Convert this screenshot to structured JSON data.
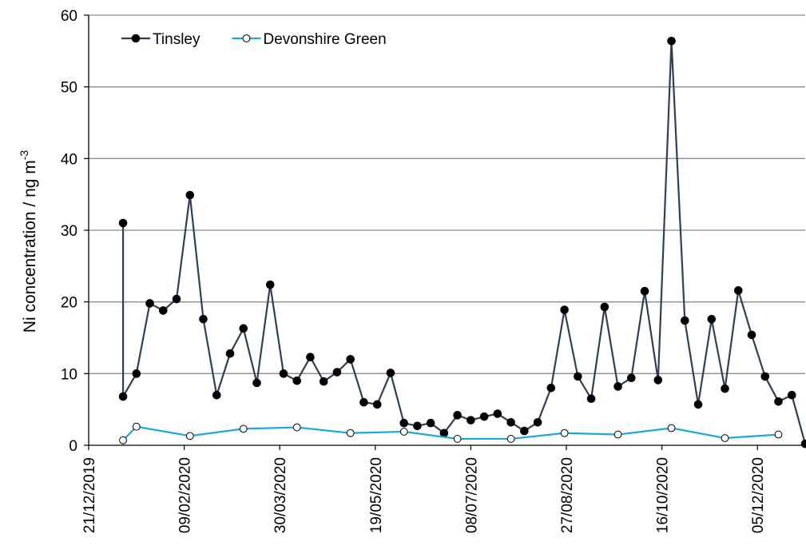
{
  "chart_data": {
    "type": "line",
    "title": "",
    "xlabel": "",
    "ylabel": "Ni concentration / ng m",
    "ylabel_superscript": "-3",
    "ylim": [
      0,
      60
    ],
    "yticks": [
      "0",
      "10",
      "20",
      "30",
      "40",
      "50",
      "60"
    ],
    "xlim": [
      "21/12/2019",
      "30/12/2020"
    ],
    "xticks": [
      "21/12/2019",
      "09/02/2020",
      "30/03/2020",
      "19/05/2020",
      "08/07/2020",
      "27/08/2020",
      "16/10/2020",
      "05/12/2020"
    ],
    "grid": "horizontal",
    "legend_position": "top-left",
    "colors": {
      "Tinsley": "#2e4057",
      "Devonshire Green": "#1aa7df"
    },
    "series": [
      {
        "name": "Tinsley",
        "marker": "filled-circle",
        "points": [
          [
            "2020-01-08",
            31.0
          ],
          [
            "2020-01-08",
            6.8
          ],
          [
            "2020-01-15",
            10.0
          ],
          [
            "2020-01-22",
            19.8
          ],
          [
            "2020-01-29",
            18.8
          ],
          [
            "2020-02-05",
            20.4
          ],
          [
            "2020-02-12",
            34.9
          ],
          [
            "2020-02-19",
            17.6
          ],
          [
            "2020-02-26",
            7.0
          ],
          [
            "2020-03-04",
            12.8
          ],
          [
            "2020-03-11",
            16.3
          ],
          [
            "2020-03-18",
            8.7
          ],
          [
            "2020-03-25",
            22.4
          ],
          [
            "2020-04-01",
            10.0
          ],
          [
            "2020-04-08",
            9.0
          ],
          [
            "2020-04-15",
            12.3
          ],
          [
            "2020-04-22",
            8.9
          ],
          [
            "2020-04-29",
            10.2
          ],
          [
            "2020-05-06",
            12.0
          ],
          [
            "2020-05-13",
            6.0
          ],
          [
            "2020-05-20",
            5.7
          ],
          [
            "2020-05-27",
            10.1
          ],
          [
            "2020-06-03",
            3.1
          ],
          [
            "2020-06-10",
            2.7
          ],
          [
            "2020-06-17",
            3.1
          ],
          [
            "2020-06-24",
            1.7
          ],
          [
            "2020-07-01",
            4.2
          ],
          [
            "2020-07-08",
            3.5
          ],
          [
            "2020-07-15",
            4.0
          ],
          [
            "2020-07-22",
            4.4
          ],
          [
            "2020-07-29",
            3.2
          ],
          [
            "2020-08-05",
            2.0
          ],
          [
            "2020-08-12",
            3.2
          ],
          [
            "2020-08-19",
            8.0
          ],
          [
            "2020-08-26",
            18.9
          ],
          [
            "2020-09-02",
            9.6
          ],
          [
            "2020-09-09",
            6.5
          ],
          [
            "2020-09-16",
            19.3
          ],
          [
            "2020-09-23",
            8.2
          ],
          [
            "2020-09-30",
            9.4
          ],
          [
            "2020-10-07",
            21.5
          ],
          [
            "2020-10-14",
            9.1
          ],
          [
            "2020-10-21",
            56.4
          ],
          [
            "2020-10-28",
            17.4
          ],
          [
            "2020-11-04",
            5.7
          ],
          [
            "2020-11-11",
            17.6
          ],
          [
            "2020-11-18",
            7.9
          ],
          [
            "2020-11-25",
            21.6
          ],
          [
            "2020-12-02",
            15.4
          ],
          [
            "2020-12-09",
            9.6
          ],
          [
            "2020-12-16",
            6.1
          ],
          [
            "2020-12-23",
            7.0
          ],
          [
            "2020-12-30",
            0.2
          ]
        ]
      },
      {
        "name": "Devonshire Green",
        "marker": "open-circle",
        "points": [
          [
            "2020-01-08",
            0.7
          ],
          [
            "2020-01-15",
            2.6
          ],
          [
            "2020-02-12",
            1.3
          ],
          [
            "2020-03-11",
            2.3
          ],
          [
            "2020-04-08",
            2.5
          ],
          [
            "2020-05-06",
            1.7
          ],
          [
            "2020-06-03",
            1.9
          ],
          [
            "2020-07-01",
            0.9
          ],
          [
            "2020-07-29",
            0.9
          ],
          [
            "2020-08-26",
            1.7
          ],
          [
            "2020-09-23",
            1.5
          ],
          [
            "2020-10-21",
            2.4
          ],
          [
            "2020-11-18",
            1.0
          ],
          [
            "2020-12-16",
            1.5
          ]
        ]
      }
    ]
  }
}
